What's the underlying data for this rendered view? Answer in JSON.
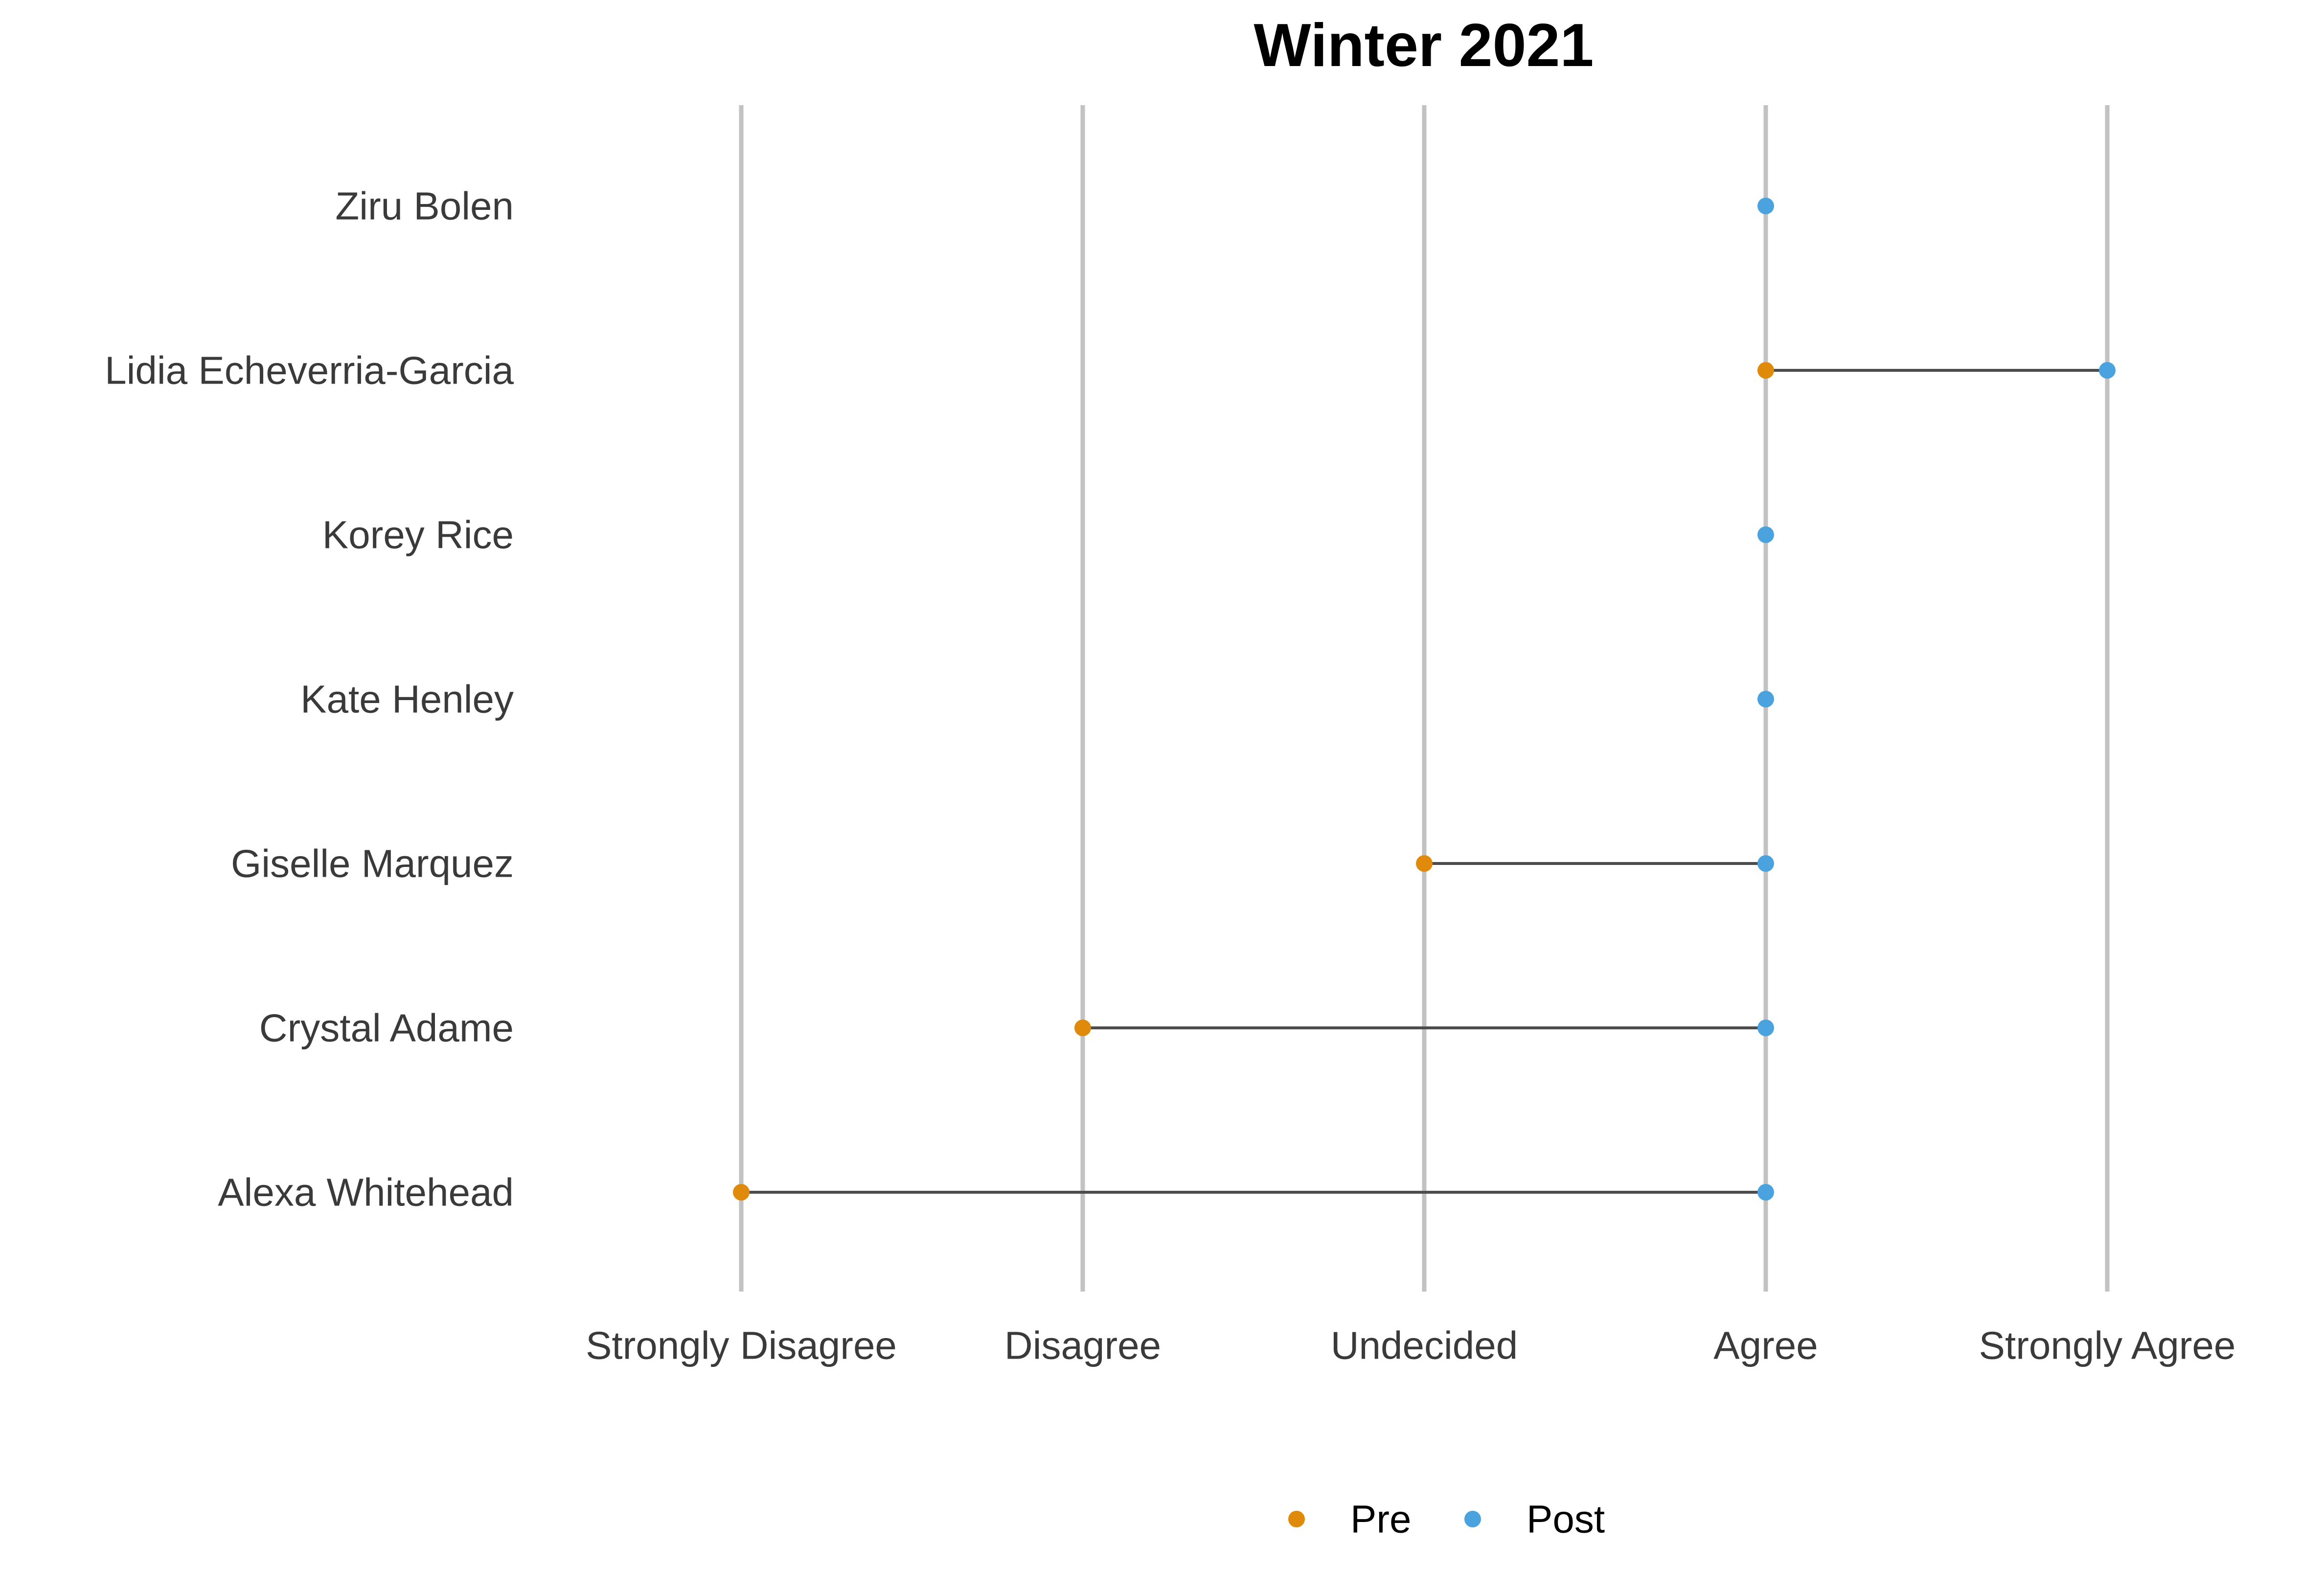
{
  "chart_data": {
    "type": "dumbbell",
    "title": "Winter 2021",
    "xlabel": "",
    "ylabel": "",
    "x_categories": [
      "Strongly Disagree",
      "Disagree",
      "Undecided",
      "Agree",
      "Strongly Agree"
    ],
    "grid": "vertical lines at each response level",
    "legend": {
      "position": "bottom",
      "entries": [
        {
          "label": "Pre",
          "color": "#E08A0B"
        },
        {
          "label": "Post",
          "color": "#4AA3DF"
        }
      ]
    },
    "rows": [
      {
        "name": "Ziru Bolen",
        "pre": "Agree",
        "post": "Agree"
      },
      {
        "name": "Lidia Echeverria-Garcia",
        "pre": "Agree",
        "post": "Strongly Agree"
      },
      {
        "name": "Korey Rice",
        "pre": "Agree",
        "post": "Agree"
      },
      {
        "name": "Kate Henley",
        "pre": "Agree",
        "post": "Agree"
      },
      {
        "name": "Giselle Marquez",
        "pre": "Undecided",
        "post": "Agree"
      },
      {
        "name": "Crystal Adame",
        "pre": "Disagree",
        "post": "Agree"
      },
      {
        "name": "Alexa Whitehead",
        "pre": "Strongly Disagree",
        "post": "Agree"
      }
    ],
    "colors": {
      "pre": "#E08A0B",
      "post": "#4AA3DF",
      "connector": "#4d4d4d",
      "gridline": "#c2c2c2"
    }
  }
}
